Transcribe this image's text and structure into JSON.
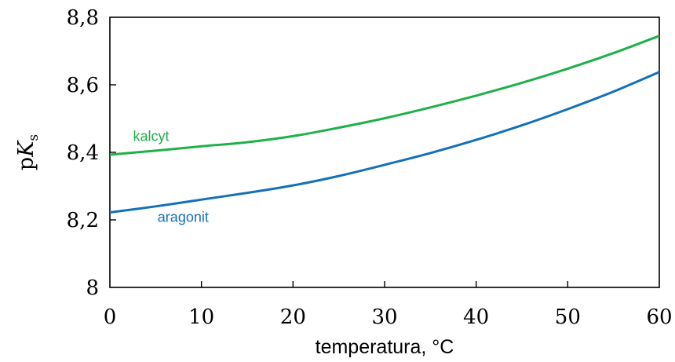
{
  "chart_data": {
    "type": "line",
    "title": "",
    "xlabel": "temperatura, °C",
    "ylabel": {
      "prefix": "p",
      "symbol": "K",
      "subscript": "s"
    },
    "xlim": [
      0,
      60
    ],
    "ylim": [
      8,
      8.8
    ],
    "xticks": [
      0,
      10,
      20,
      30,
      40,
      50,
      60
    ],
    "xtick_labels": [
      "0",
      "10",
      "20",
      "30",
      "40",
      "50",
      "60"
    ],
    "yticks": [
      8,
      8.2,
      8.4,
      8.6,
      8.8
    ],
    "ytick_labels": [
      "8",
      "8,2",
      "8,4",
      "8,6",
      "8,8"
    ],
    "grid": false,
    "legend": "none",
    "series": [
      {
        "name": "kalcyt",
        "color": "#1fb04a",
        "x": [
          0,
          5,
          10,
          15,
          20,
          25,
          30,
          35,
          40,
          45,
          50,
          55,
          60
        ],
        "y": [
          8.393,
          8.405,
          8.418,
          8.43,
          8.448,
          8.473,
          8.501,
          8.533,
          8.568,
          8.606,
          8.648,
          8.694,
          8.745
        ]
      },
      {
        "name": "aragonit",
        "color": "#1470b8",
        "x": [
          0,
          5,
          10,
          15,
          20,
          25,
          30,
          35,
          40,
          45,
          50,
          55,
          60
        ],
        "y": [
          8.222,
          8.24,
          8.26,
          8.28,
          8.302,
          8.33,
          8.363,
          8.398,
          8.437,
          8.48,
          8.528,
          8.58,
          8.638
        ]
      }
    ]
  }
}
